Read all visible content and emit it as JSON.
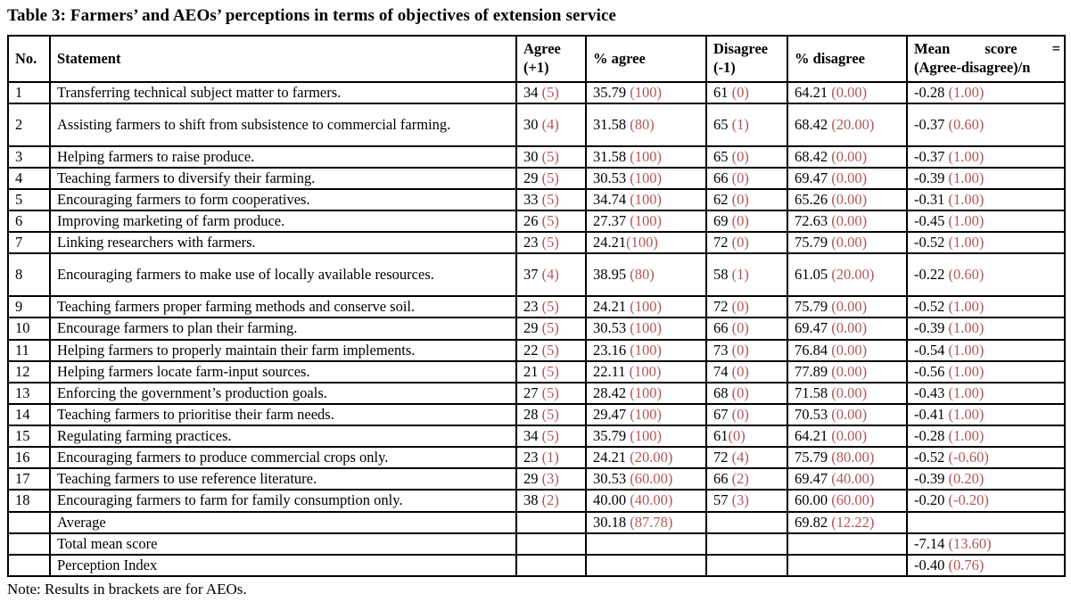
{
  "title": "Table 3: Farmers’ and AEOs’ perceptions in terms of objectives of extension service",
  "note": "Note: Results in brackets are for AEOs.",
  "colors": {
    "paren_red": "#b25757",
    "text_black": "#000000",
    "border_black": "#000000",
    "background": "#ffffff"
  },
  "table": {
    "columns": [
      "No.",
      "Statement",
      "Agree (+1)",
      "% agree",
      "Disagree (-1)",
      "% disagree"
    ],
    "mean_column": {
      "line1": "Mean score =",
      "line2": "(Agree-disagree)/n"
    },
    "rows": [
      {
        "no": "1",
        "statement": "Transferring technical subject matter to farmers.",
        "tall": false,
        "agree": [
          "34 ",
          "(5)"
        ],
        "pct_agree": [
          "35.79 ",
          "(100)"
        ],
        "disagree": [
          "61 ",
          "(0)"
        ],
        "pct_disagree": [
          "64.21 ",
          "(0.00)"
        ],
        "mean": [
          "-0.28 ",
          "(1.00)"
        ]
      },
      {
        "no": "2",
        "statement": "Assisting farmers to shift from subsistence to commercial farming.",
        "tall": true,
        "agree": [
          "30 ",
          "(4)"
        ],
        "pct_agree": [
          "31.58 ",
          "(80)"
        ],
        "disagree": [
          "65 ",
          "(1)"
        ],
        "pct_disagree": [
          "68.42 ",
          "(20.00)"
        ],
        "mean": [
          "-0.37 ",
          "(0.60)"
        ]
      },
      {
        "no": "3",
        "statement": "Helping farmers to raise produce.",
        "tall": false,
        "agree": [
          "30 ",
          "(5)"
        ],
        "pct_agree": [
          "31.58 ",
          "(100)"
        ],
        "disagree": [
          "65 ",
          "(0)"
        ],
        "pct_disagree": [
          "68.42 ",
          "(0.00)"
        ],
        "mean": [
          "-0.37 ",
          "(1.00)"
        ]
      },
      {
        "no": "4",
        "statement": "Teaching farmers to diversify their farming.",
        "tall": false,
        "agree": [
          "29 ",
          "(5)"
        ],
        "pct_agree": [
          "30.53 ",
          "(100)"
        ],
        "disagree": [
          "66 ",
          "(0)"
        ],
        "pct_disagree": [
          "69.47 ",
          "(0.00)"
        ],
        "mean": [
          "-0.39 ",
          "(1.00)"
        ]
      },
      {
        "no": "5",
        "statement": "Encouraging farmers to form cooperatives.",
        "tall": false,
        "agree": [
          "33 ",
          "(5)"
        ],
        "pct_agree": [
          "34.74 ",
          "(100)"
        ],
        "disagree": [
          "62 ",
          "(0)"
        ],
        "pct_disagree": [
          "65.26 ",
          "(0.00)"
        ],
        "mean": [
          "-0.31 ",
          "(1.00)"
        ]
      },
      {
        "no": "6",
        "statement": "Improving marketing of farm produce.",
        "tall": false,
        "agree": [
          "26 ",
          "(5)"
        ],
        "pct_agree": [
          "27.37 ",
          "(100)"
        ],
        "disagree": [
          "69 ",
          "(0)"
        ],
        "pct_disagree": [
          "72.63 ",
          "(0.00)"
        ],
        "mean": [
          "-0.45 ",
          "(1.00)"
        ]
      },
      {
        "no": "7",
        "statement": "Linking researchers with farmers.",
        "tall": false,
        "agree": [
          "23 ",
          "(5)"
        ],
        "pct_agree": [
          "24.21",
          "(100)"
        ],
        "disagree": [
          "72 ",
          "(0)"
        ],
        "pct_disagree": [
          "75.79 ",
          "(0.00)"
        ],
        "mean": [
          "-0.52 ",
          "(1.00)"
        ]
      },
      {
        "no": "8",
        "statement": "Encouraging farmers to make use of locally available resources.",
        "tall": true,
        "agree": [
          "37 ",
          "(4)"
        ],
        "pct_agree": [
          "38.95 ",
          "(80)"
        ],
        "disagree": [
          "58 ",
          "(1)"
        ],
        "pct_disagree": [
          "61.05 ",
          "(20.00)"
        ],
        "mean": [
          "-0.22 ",
          "(0.60)"
        ]
      },
      {
        "no": "9",
        "statement": "Teaching farmers proper farming methods and conserve soil.",
        "tall": false,
        "agree": [
          "23 ",
          "(5)"
        ],
        "pct_agree": [
          "24.21 ",
          "(100)"
        ],
        "disagree": [
          "72 ",
          "(0)"
        ],
        "pct_disagree": [
          "75.79 ",
          "(0.00)"
        ],
        "mean": [
          "-0.52 ",
          "(1.00)"
        ]
      },
      {
        "no": "10",
        "statement": "Encourage farmers to plan their farming.",
        "tall": false,
        "agree": [
          "29 ",
          "(5)"
        ],
        "pct_agree": [
          "30.53 ",
          "(100)"
        ],
        "disagree": [
          "66 ",
          "(0)"
        ],
        "pct_disagree": [
          "69.47 ",
          "(0.00)"
        ],
        "mean": [
          "-0.39 ",
          "(1.00)"
        ]
      },
      {
        "no": "11",
        "statement": "Helping farmers to properly maintain their farm implements.",
        "tall": false,
        "agree": [
          "22 ",
          "(5)"
        ],
        "pct_agree": [
          "23.16 ",
          "(100)"
        ],
        "disagree": [
          "73 ",
          "(0)"
        ],
        "pct_disagree": [
          "76.84 ",
          "(0.00)"
        ],
        "mean": [
          "-0.54 ",
          "(1.00)"
        ]
      },
      {
        "no": "12",
        "statement": "Helping farmers locate farm-input sources.",
        "tall": false,
        "agree": [
          "21 ",
          "(5)"
        ],
        "pct_agree": [
          "22.11 ",
          "(100)"
        ],
        "disagree": [
          "74 ",
          "(0)"
        ],
        "pct_disagree": [
          "77.89 ",
          "(0.00)"
        ],
        "mean": [
          "-0.56 ",
          "(1.00)"
        ]
      },
      {
        "no": "13",
        "statement": "Enforcing the government’s production goals.",
        "tall": false,
        "agree": [
          "27 ",
          "(5)"
        ],
        "pct_agree": [
          "28.42 ",
          "(100)"
        ],
        "disagree": [
          "68 ",
          "(0)"
        ],
        "pct_disagree": [
          "71.58 ",
          "(0.00)"
        ],
        "mean": [
          "-0.43 ",
          "(1.00)"
        ]
      },
      {
        "no": "14",
        "statement": "Teaching farmers to prioritise their farm needs.",
        "tall": false,
        "agree": [
          "28 ",
          "(5)"
        ],
        "pct_agree": [
          "29.47 ",
          "(100)"
        ],
        "disagree": [
          "67 ",
          "(0)"
        ],
        "pct_disagree": [
          "70.53 ",
          "(0.00)"
        ],
        "mean": [
          "-0.41 ",
          "(1.00)"
        ]
      },
      {
        "no": "15",
        "statement": "Regulating farming practices.",
        "tall": false,
        "agree": [
          "34 ",
          "(5)"
        ],
        "pct_agree": [
          "35.79 ",
          "(100)"
        ],
        "disagree": [
          "61",
          "(0)"
        ],
        "pct_disagree": [
          "64.21 ",
          "(0.00)"
        ],
        "mean": [
          "-0.28 ",
          "(1.00)"
        ]
      },
      {
        "no": "16",
        "statement": "Encouraging farmers to produce commercial crops only.",
        "tall": false,
        "agree": [
          "23 ",
          "(1)"
        ],
        "pct_agree": [
          "24.21 ",
          "(20.00)"
        ],
        "disagree": [
          "72 ",
          "(4)"
        ],
        "pct_disagree": [
          "75.79 ",
          "(80.00)"
        ],
        "mean": [
          "-0.52 ",
          "(-0.60)"
        ]
      },
      {
        "no": "17",
        "statement": "Teaching farmers to use reference literature.",
        "tall": false,
        "agree": [
          "29 ",
          "(3)"
        ],
        "pct_agree": [
          "30.53 ",
          "(60.00)"
        ],
        "disagree": [
          "66 ",
          "(2)"
        ],
        "pct_disagree": [
          "69.47 ",
          "(40.00)"
        ],
        "mean": [
          "-0.39 ",
          "(0.20)"
        ]
      },
      {
        "no": "18",
        "statement": "Encouraging farmers to farm for family consumption only.",
        "tall": false,
        "agree": [
          "38 ",
          "(2)"
        ],
        "pct_agree": [
          "40.00 ",
          "(40.00)"
        ],
        "disagree": [
          "57 ",
          "(3)"
        ],
        "pct_disagree": [
          "60.00 ",
          "(60.00)"
        ],
        "mean": [
          "-0.20 ",
          "(-0.20)"
        ]
      }
    ],
    "footer_rows": [
      {
        "label": "Average",
        "agree": null,
        "pct_agree": [
          "30.18 ",
          "(87.78)"
        ],
        "disagree": null,
        "pct_disagree": [
          "69.82 ",
          "(12.22)"
        ],
        "mean": null
      },
      {
        "label": "Total mean score",
        "agree": null,
        "pct_agree": null,
        "disagree": null,
        "pct_disagree": null,
        "mean": [
          "-7.14 ",
          "(13.60)"
        ]
      },
      {
        "label": "Perception Index",
        "agree": null,
        "pct_agree": null,
        "disagree": null,
        "pct_disagree": null,
        "mean": [
          "-0.40 ",
          "(0.76)"
        ]
      }
    ]
  }
}
